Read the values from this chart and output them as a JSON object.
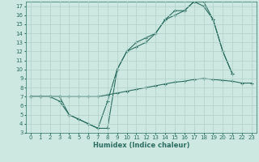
{
  "xlabel": "Humidex (Indice chaleur)",
  "background_color": "#cce8e0",
  "grid_color": "#b0d0c8",
  "line_color": "#2e6e62",
  "xlim": [
    -0.5,
    23.5
  ],
  "ylim": [
    3,
    17.5
  ],
  "xticks": [
    0,
    1,
    2,
    3,
    4,
    5,
    6,
    7,
    8,
    9,
    10,
    11,
    12,
    13,
    14,
    15,
    16,
    17,
    18,
    19,
    20,
    21,
    22,
    23
  ],
  "yticks": [
    3,
    4,
    5,
    6,
    7,
    8,
    9,
    10,
    11,
    12,
    13,
    14,
    15,
    16,
    17
  ],
  "line1_x": [
    0,
    1,
    2,
    3,
    4,
    5,
    6,
    7,
    8,
    9,
    10,
    11,
    12,
    13,
    14,
    15,
    16,
    17,
    18,
    19,
    20,
    21
  ],
  "line1_y": [
    7,
    7,
    7,
    7,
    5,
    4.5,
    4,
    3.5,
    3.5,
    10,
    12,
    13,
    13.5,
    14,
    15.5,
    16.5,
    16.5,
    17.5,
    17.5,
    15.5,
    12,
    9.5
  ],
  "line2_x": [
    0,
    1,
    2,
    3,
    4,
    5,
    6,
    7,
    8,
    9,
    10,
    11,
    12,
    13,
    14,
    15,
    16,
    17,
    18,
    19,
    20,
    21
  ],
  "line2_y": [
    7,
    7,
    7,
    6.5,
    5,
    4.5,
    4,
    3.5,
    6.5,
    10,
    12,
    12.5,
    13,
    14,
    15.5,
    16,
    16.5,
    17.5,
    17,
    15.5,
    12,
    9.5
  ],
  "line3_x": [
    0,
    1,
    2,
    3,
    4,
    5,
    6,
    7,
    8,
    9,
    10,
    11,
    12,
    13,
    14,
    15,
    16,
    17,
    18,
    19,
    20,
    21,
    22,
    23
  ],
  "line3_y": [
    7,
    7,
    7,
    7,
    7,
    7,
    7,
    7,
    7.2,
    7.4,
    7.6,
    7.8,
    8.0,
    8.2,
    8.4,
    8.6,
    8.7,
    8.9,
    9.0,
    8.9,
    8.8,
    8.7,
    8.5,
    8.5
  ],
  "markersize": 2.5,
  "linewidth": 0.8,
  "tick_fontsize": 5.0,
  "label_fontsize": 6.0
}
